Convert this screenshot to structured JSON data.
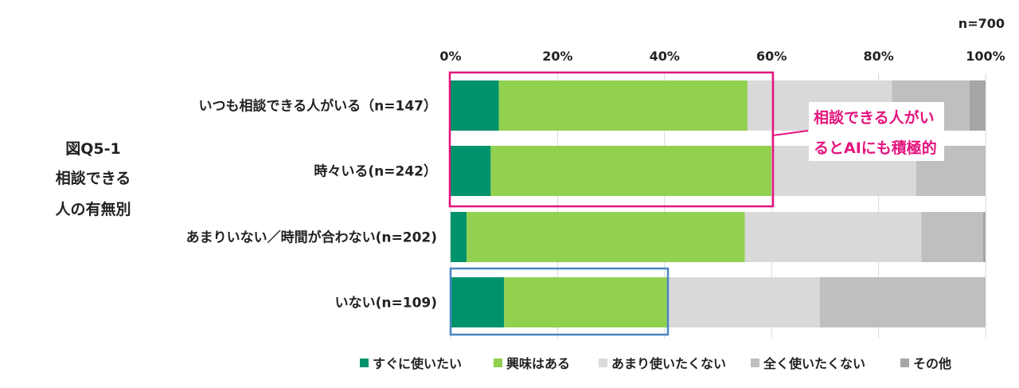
{
  "title_lines": [
    "図Q5-1",
    "相談できる",
    "人の有無別"
  ],
  "sample_note": "n=700",
  "colors": {
    "highlight_pink": "#e4147d",
    "highlight_blue": "#4a86c0",
    "grid": "#d9d9d9"
  },
  "annotation": {
    "lines": [
      "相談できる人がい",
      "るとAIにも積極的"
    ]
  },
  "chart_data": {
    "type": "bar",
    "orientation": "horizontal",
    "stacked": "percent",
    "categories": [
      "いつも相談できる人がいる（n=147）",
      "時々いる(n=242）",
      "あまりいない／時間が合わない(n=202)",
      "いない(n=109)"
    ],
    "series": [
      {
        "name": "すぐに使いたい",
        "color": "#00936b",
        "values": [
          9,
          7.5,
          3,
          10
        ]
      },
      {
        "name": "興味はある",
        "color": "#92d050",
        "values": [
          46.5,
          52.5,
          52,
          30.5
        ]
      },
      {
        "name": "あまり使いたくない",
        "color": "#d9d9d9",
        "values": [
          27,
          27,
          33,
          28.5
        ]
      },
      {
        "name": "全く使いたくない",
        "color": "#bfbfbf",
        "values": [
          14.5,
          13,
          11.5,
          31
        ]
      },
      {
        "name": "その他",
        "color": "#a6a6a6",
        "values": [
          3,
          0,
          0.5,
          0
        ]
      }
    ],
    "xlim": [
      0,
      100
    ],
    "xticks": [
      "0%",
      "20%",
      "40%",
      "60%",
      "80%",
      "100%"
    ],
    "grid": true,
    "legend_position": "bottom"
  }
}
